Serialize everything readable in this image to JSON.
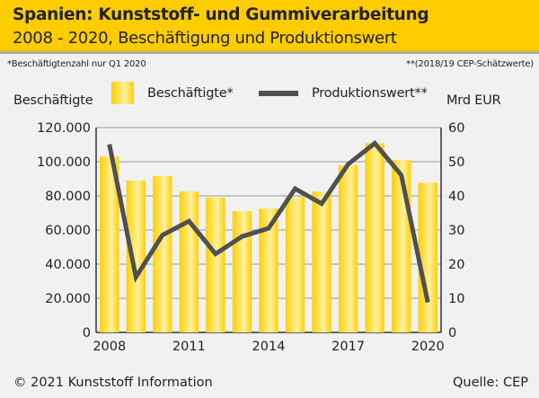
{
  "header": {
    "title": "Spanien: Kunststoff- und  Gummiverarbeitung",
    "subtitle": "2008 - 2020, Beschäftigung und Produktionswert"
  },
  "notes": {
    "left": "*Beschäftigtenzahl nur Q1 2020",
    "right": "**(2018/19 CEP-Schätzwerte)"
  },
  "footer": {
    "copyright": "© 2021 Kunststoff Information",
    "source": "Quelle: CEP"
  },
  "colors": {
    "bar": "#ffd21a",
    "line": "#505050",
    "header": "#ffcc00"
  },
  "chart_data": {
    "type": "bar+line",
    "title": "Spanien: Kunststoff- und Gummiverarbeitung",
    "categories": [
      "2008",
      "2009",
      "2010",
      "2011",
      "2012",
      "2013",
      "2014",
      "2015",
      "2016",
      "2017",
      "2018",
      "2019",
      "2020"
    ],
    "x_tick_labels": [
      "2008",
      "2011",
      "2014",
      "2017",
      "2020"
    ],
    "ylabel_left": "Beschäftigte",
    "ylabel_right": "Mrd EUR",
    "ylim_left": [
      0,
      120000
    ],
    "ylim_right": [
      0,
      60
    ],
    "y_ticks_left": [
      "0",
      "20.000",
      "40.000",
      "60.000",
      "80.000",
      "100.000",
      "120.000"
    ],
    "y_ticks_right": [
      "0",
      "10",
      "20",
      "30",
      "40",
      "50",
      "60"
    ],
    "grid": true,
    "legend": {
      "placement": "top",
      "entries": [
        "Beschäftigte*",
        "Produktionswert**"
      ]
    },
    "series": [
      {
        "name": "Beschäftigte*",
        "type": "bar",
        "axis": "left",
        "values": [
          103000,
          89000,
          91600,
          82500,
          79000,
          71000,
          72500,
          79300,
          82500,
          97900,
          110900,
          100900,
          87700
        ]
      },
      {
        "name": "Produktionswert**",
        "type": "line",
        "axis": "right",
        "values": [
          55.1,
          16.2,
          28.5,
          32.6,
          23.0,
          28.1,
          30.5,
          42.1,
          37.7,
          49.3,
          55.4,
          46.1,
          8.8
        ]
      }
    ]
  }
}
